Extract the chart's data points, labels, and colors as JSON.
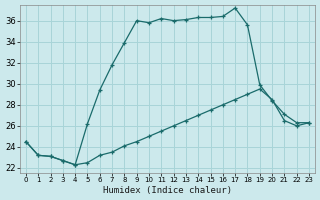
{
  "xlabel": "Humidex (Indice chaleur)",
  "bg_color": "#cce9ec",
  "grid_color": "#a8d4d8",
  "line_color": "#1a6b6b",
  "xlim": [
    -0.5,
    23.5
  ],
  "ylim": [
    21.5,
    37.5
  ],
  "xtick_labels": [
    "0",
    "1",
    "2",
    "3",
    "4",
    "5",
    "6",
    "7",
    "8",
    "9",
    "10",
    "11",
    "12",
    "13",
    "14",
    "15",
    "16",
    "17",
    "18",
    "19",
    "20",
    "21",
    "22",
    "23"
  ],
  "ytick_values": [
    22,
    24,
    26,
    28,
    30,
    32,
    34,
    36
  ],
  "line1_y": [
    24.5,
    23.2,
    23.1,
    22.7,
    22.3,
    22.5,
    23.2,
    23.5,
    24.1,
    24.5,
    25.0,
    25.5,
    26.0,
    26.5,
    27.0,
    27.5,
    28.0,
    28.5,
    29.0,
    29.5,
    28.5,
    26.5,
    26.0,
    26.3
  ],
  "line2_y": [
    24.5,
    23.2,
    23.1,
    22.7,
    22.3,
    26.2,
    29.4,
    31.8,
    33.9,
    36.0,
    35.8,
    36.2,
    36.0,
    36.1,
    36.3,
    36.3,
    36.4,
    37.2,
    35.6,
    29.9,
    28.4,
    27.1,
    26.3,
    26.3
  ]
}
